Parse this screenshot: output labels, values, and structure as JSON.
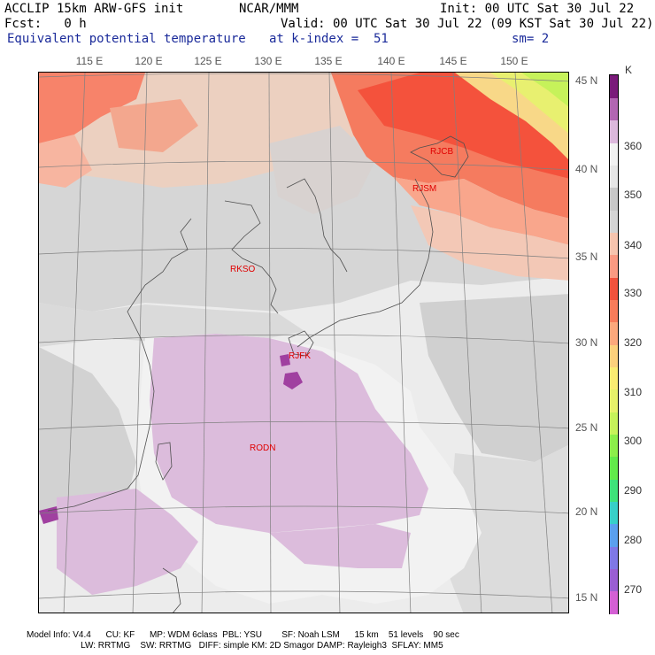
{
  "header": {
    "model": "ACCLIP 15km ARW-GFS init",
    "org": "NCAR/MMM",
    "init": "Init: 00 UTC Sat 30 Jul 22",
    "fcst": "Fcst:   0 h",
    "valid": "Valid: 00 UTC Sat 30 Jul 22 (09 KST Sat 30 Jul 22)",
    "field": "Equivalent potential temperature",
    "level": "at k-index =  51",
    "smooth": "sm= 2"
  },
  "map": {
    "lon_labels": [
      "115 E",
      "120 E",
      "125 E",
      "130 E",
      "135 E",
      "140 E",
      "145 E",
      "150 E"
    ],
    "lat_labels": [
      "45 N",
      "40 N",
      "35 N",
      "30 N",
      "25 N",
      "20 N",
      "15 N"
    ],
    "stations": [
      {
        "id": "RJCB",
        "lon": 143.2,
        "lat": 42.7
      },
      {
        "id": "RJSM",
        "lon": 141.4,
        "lat": 40.7
      },
      {
        "id": "RKSO",
        "lon": 127.0,
        "lat": 37.1
      },
      {
        "id": "RJFK",
        "lon": 130.7,
        "lat": 31.8
      },
      {
        "id": "RODN",
        "lon": 127.8,
        "lat": 26.4
      }
    ]
  },
  "colorbar": {
    "unit": "K",
    "labels": [
      "270",
      "280",
      "290",
      "300",
      "310",
      "320",
      "330",
      "340",
      "350",
      "360"
    ],
    "colors": [
      "#d460d4",
      "#9a5ed2",
      "#7f78e6",
      "#5aa0ee",
      "#37d0c8",
      "#3ee27a",
      "#62ea4a",
      "#8cee4a",
      "#c6f25a",
      "#e6f06a",
      "#faec72",
      "#fcd07c",
      "#fca87c",
      "#f87c5a",
      "#f2523c",
      "#fa9a82",
      "#f6c4ae",
      "#d4d4d4",
      "#c8c8c8",
      "#e6e6e6",
      "#f2f2f2",
      "#dcb8dc",
      "#b266b2",
      "#7a1a7a"
    ]
  },
  "footer": {
    "line1": "Model Info: V4.4      CU: KF      MP: WDM 6class  PBL: YSU        SF: Noah LSM      15 km    51 levels    90 sec",
    "line2": "                      LW: RRTMG    SW: RRTMG   DIFF: simple KM: 2D Smagor DAMP: Rayleigh3  SFLAY: MM5"
  }
}
